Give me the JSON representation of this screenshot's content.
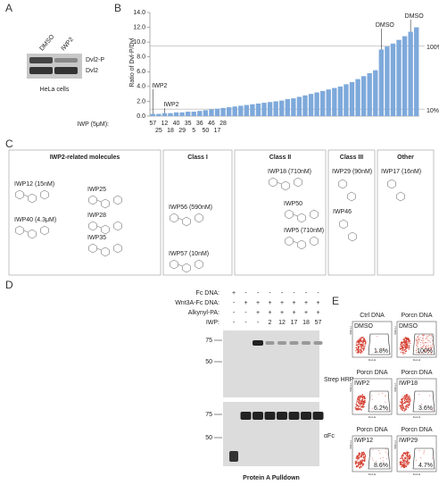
{
  "panel_labels": [
    "A",
    "B",
    "C",
    "D",
    "E"
  ],
  "panel_a": {
    "lanes": [
      "DMSO",
      "IWP2"
    ],
    "bands": [
      "Dvl2-P",
      "Dvl2"
    ],
    "caption": "HeLa cells"
  },
  "chart_data": {
    "type": "bar",
    "ylabel": "Ratio of Dvl-P/Dvl",
    "xlabel": "IWP (5μM):",
    "categories": [
      "57",
      "25",
      "12",
      "18",
      "40",
      "29",
      "35",
      "5",
      "36",
      "50",
      "46",
      "17",
      "28",
      null,
      null,
      null,
      null,
      null,
      null,
      null,
      null,
      null,
      null,
      null,
      null,
      null,
      null,
      null,
      null,
      null,
      null,
      null,
      null,
      null,
      null,
      null,
      null,
      null,
      null,
      null,
      null,
      null,
      null,
      null,
      null,
      null
    ],
    "values": [
      0.3,
      0.3,
      0.4,
      0.4,
      0.5,
      0.5,
      0.6,
      0.6,
      0.7,
      0.8,
      0.9,
      1.0,
      1.1,
      1.2,
      1.3,
      1.4,
      1.5,
      1.6,
      1.7,
      1.8,
      1.9,
      2.0,
      2.1,
      2.3,
      2.4,
      2.6,
      2.8,
      3.0,
      3.2,
      3.4,
      3.6,
      3.8,
      4.0,
      4.3,
      4.6,
      5.0,
      5.4,
      5.8,
      6.2,
      9.0,
      9.4,
      9.8,
      10.3,
      10.8,
      11.4,
      12.0
    ],
    "color": "#7ea9db",
    "ylim": [
      0,
      14
    ],
    "yticks": [
      {
        "value": 0,
        "label": "0.0"
      },
      {
        "value": 2,
        "label": "2.0"
      },
      {
        "value": 4,
        "label": "4.0"
      },
      {
        "value": 6,
        "label": "6.0"
      },
      {
        "value": 8,
        "label": "8.0"
      },
      {
        "value": 10,
        "label": "10.0"
      },
      {
        "value": 12,
        "label": "12.0"
      },
      {
        "value": 14,
        "label": "14.0"
      }
    ],
    "reference_lines": [
      {
        "value": 9.5,
        "label": "100%"
      },
      {
        "value": 0.95,
        "label": "10%"
      }
    ],
    "annotations": [
      "IWP2",
      "IWP2",
      "DMSO",
      "DMSO"
    ]
  },
  "panel_c": {
    "groups": [
      {
        "title": "IWP2-related molecules",
        "compounds": [
          "IWP12 (15nM)",
          "IWP25",
          "IWP40 (4.3μM)",
          "IWP28",
          "IWP35"
        ]
      },
      {
        "title": "Class I",
        "compounds": [
          "IWP56 (590nM)",
          "IWP57 (10nM)"
        ]
      },
      {
        "title": "Class II",
        "compounds": [
          "IWP18 (710nM)",
          "IWP50",
          "IWP5 (710nM)"
        ]
      },
      {
        "title": "Class III",
        "compounds": [
          "IWP29 (90nM)",
          "IWP46"
        ]
      },
      {
        "title": "Other",
        "compounds": [
          "IWP17 (16nM)"
        ]
      }
    ]
  },
  "panel_d": {
    "rows": [
      {
        "label": "Fc DNA:",
        "lanes": [
          "+",
          "-",
          "-",
          "-",
          "-",
          "-",
          "-",
          "-"
        ]
      },
      {
        "label": "Wnt3A-Fc DNA:",
        "lanes": [
          "-",
          "+",
          "+",
          "+",
          "+",
          "+",
          "+",
          "+"
        ]
      },
      {
        "label": "Alkynyl-PA:",
        "lanes": [
          "-",
          "-",
          "+",
          "+",
          "+",
          "+",
          "+",
          "+"
        ]
      },
      {
        "label": "IWP:",
        "lanes": [
          "-",
          "-",
          "-",
          "2",
          "12",
          "17",
          "18",
          "57"
        ]
      }
    ],
    "markers": [
      75,
      50
    ],
    "blots": [
      "Strep HRP",
      "αFc"
    ],
    "caption": "Protein A Pulldown"
  },
  "panel_e": {
    "xaxis": "FL2-H",
    "yaxis": "SSC-H",
    "plots": [
      {
        "title": "Ctrl DNA",
        "treatment": "DMSO",
        "percent": "1.8%"
      },
      {
        "title": "Porcn DNA",
        "treatment": "DMSO",
        "percent": "100%"
      },
      {
        "title": "Porcn DNA",
        "treatment": "IWP2",
        "percent": "6.2%"
      },
      {
        "title": "Porcn DNA",
        "treatment": "IWP18",
        "percent": "3.6%"
      },
      {
        "title": "Porcn DNA",
        "treatment": "IWP12",
        "percent": "8.6%"
      },
      {
        "title": "Porcn DNA",
        "treatment": "IWP29",
        "percent": "4.7%"
      }
    ]
  }
}
